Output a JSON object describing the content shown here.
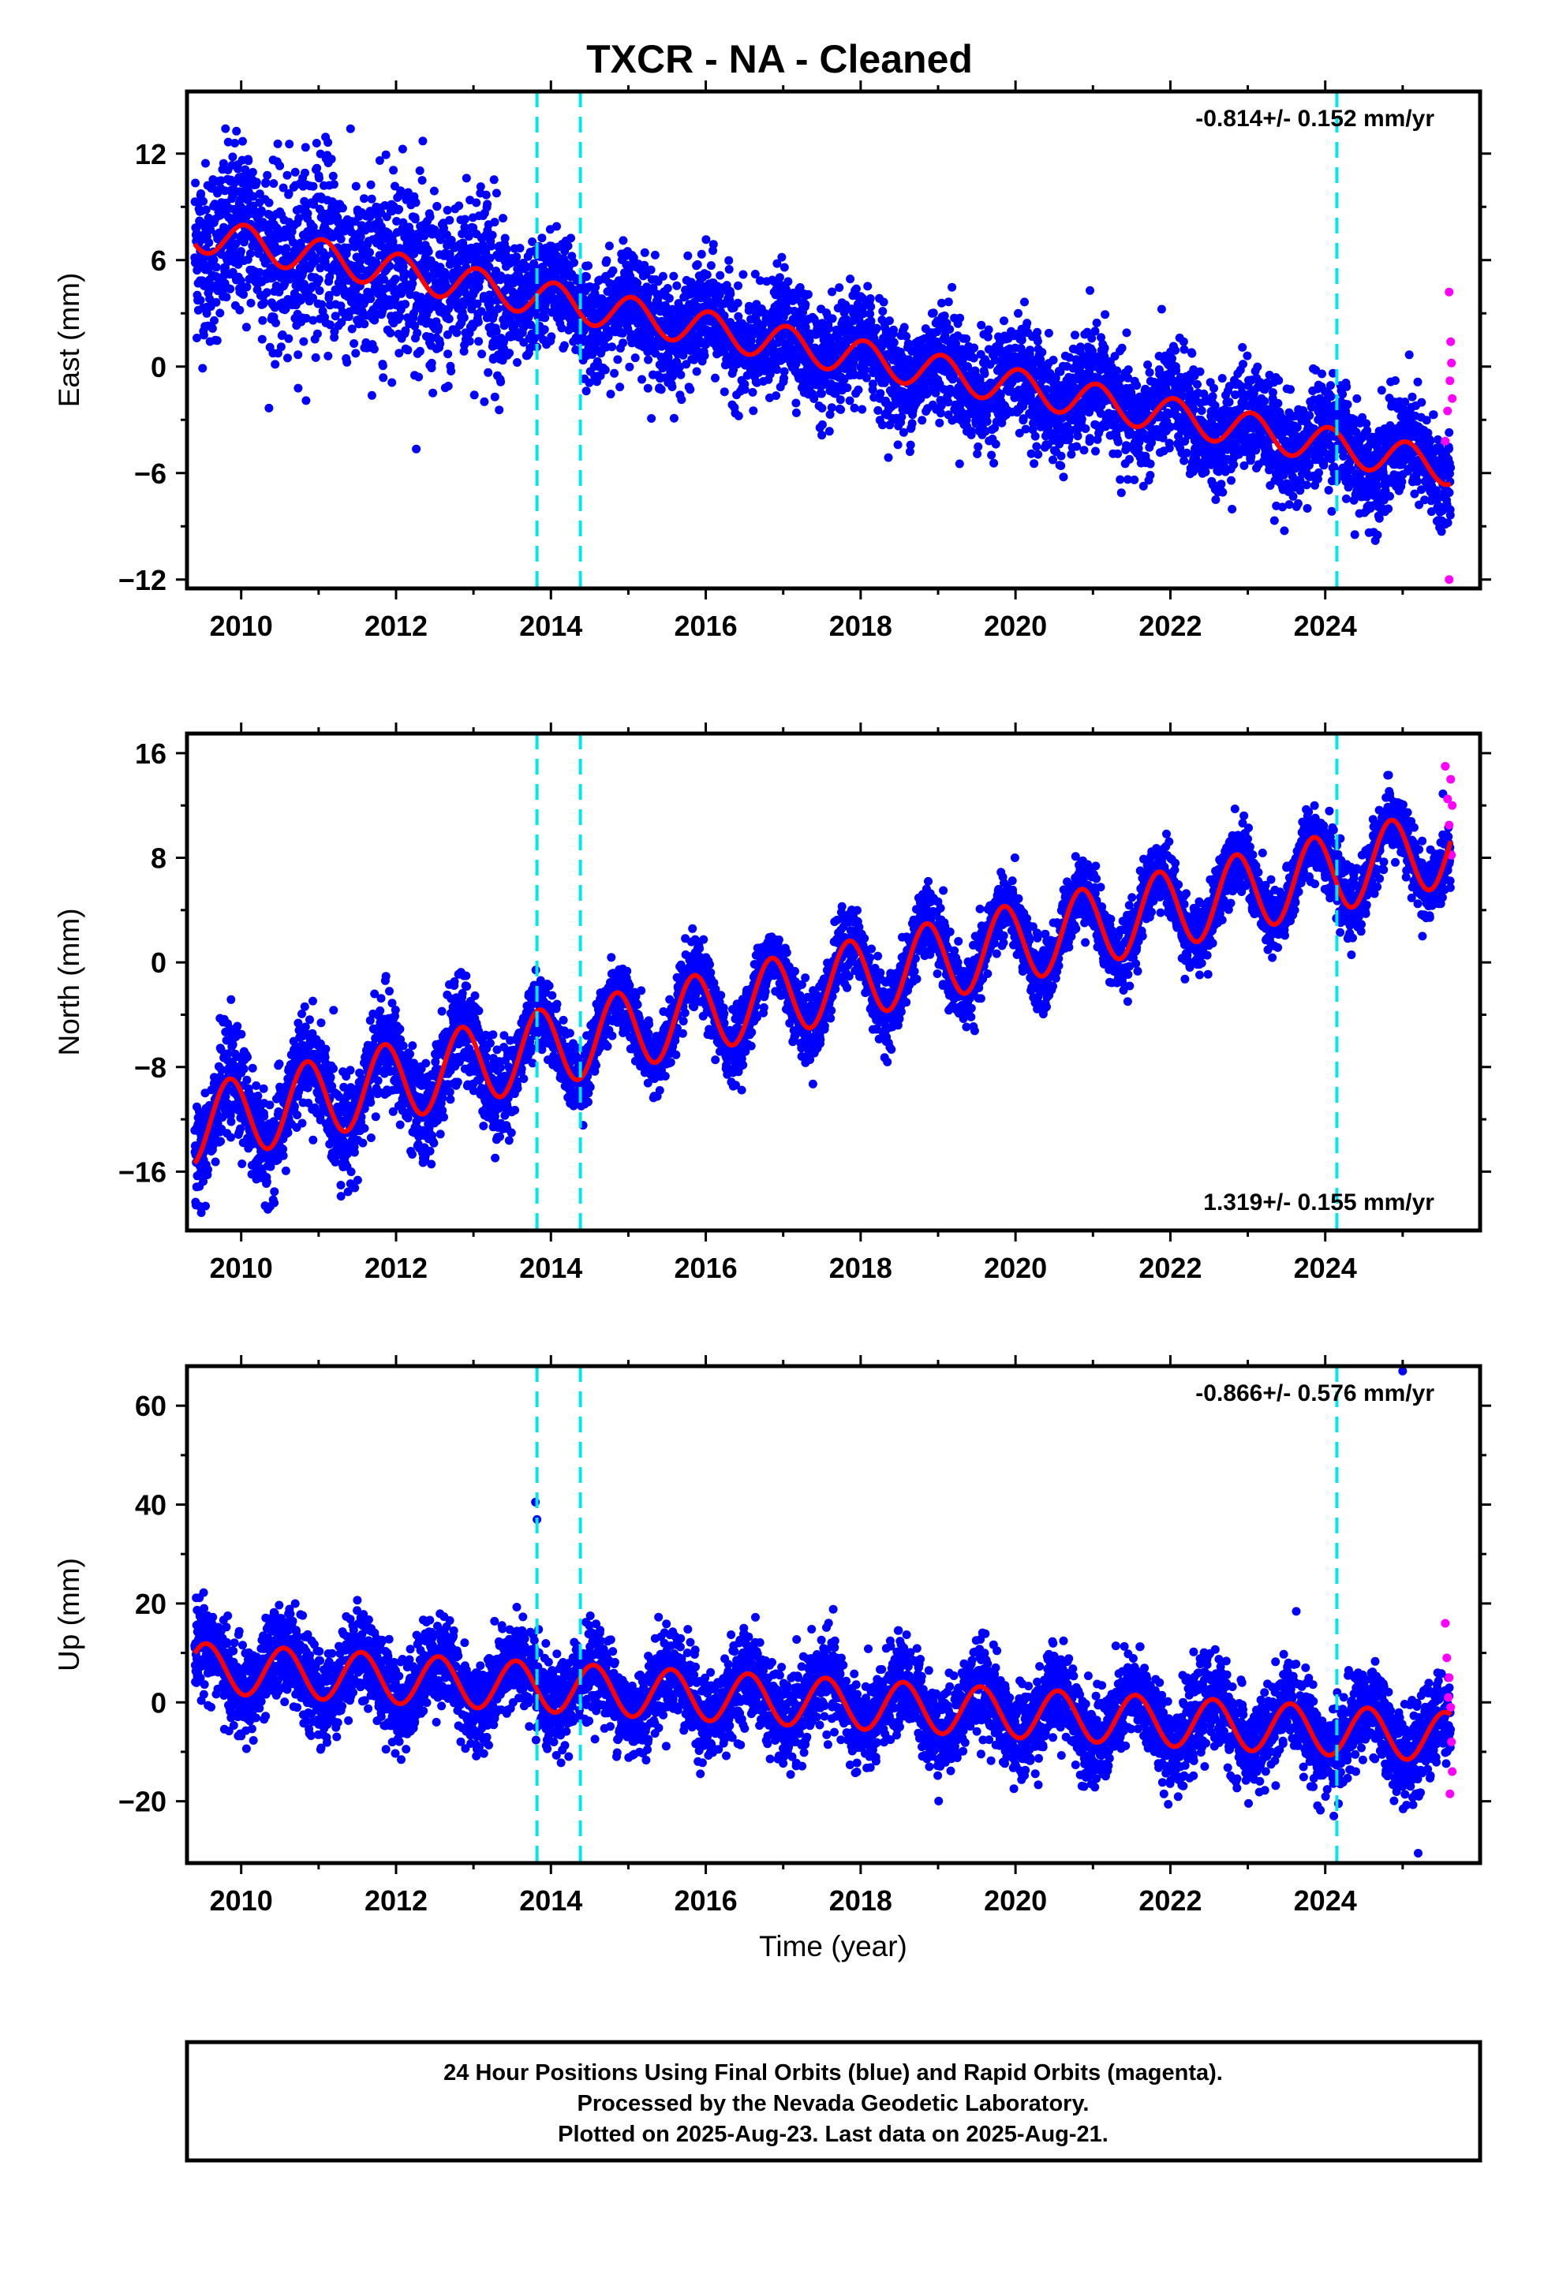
{
  "title": "TXCR  - NA - Cleaned",
  "footer": {
    "line1": "24 Hour Positions Using Final Orbits (blue) and Rapid Orbits (magenta).",
    "line2": "Processed by the Nevada Geodetic Laboratory.",
    "line3": "Plotted on 2025-Aug-23. Last data on 2025-Aug-21."
  },
  "colors": {
    "final_orbits": "#0000ff",
    "rapid_orbits": "#ff00ff",
    "model_fit": "#ff0000",
    "offset_lines": "#00e5ee"
  },
  "chart_data": [
    {
      "type": "scatter",
      "title": "TXCR  - NA - Cleaned",
      "xlabel": "",
      "ylabel": "East (mm)",
      "xlim": [
        2009.3,
        2026.0
      ],
      "ylim": [
        -12.5,
        15.5
      ],
      "xticks": [
        2010,
        2012,
        2014,
        2016,
        2018,
        2020,
        2022,
        2024
      ],
      "yticks": [
        -12,
        -6,
        0,
        6,
        12
      ],
      "ytick_labels": [
        "−12",
        "−6",
        "0",
        "6",
        "12"
      ],
      "rate": "-0.814+/- 0.152 mm/yr",
      "rate_position": "top-right",
      "model": {
        "intercept": 7.5,
        "slope": -0.814,
        "annual_amp": 1.0,
        "annual_phase": 0.8,
        "noise_sd": 1.5,
        "extra_sd_before_2013_5": 1.0
      },
      "offset_lines_x": [
        2013.82,
        2014.38,
        2024.15
      ],
      "rapid_orbits": {
        "x": [
          2025.55,
          2025.58,
          2025.6,
          2025.62,
          2025.63,
          2025.64,
          2025.6,
          2025.61
        ],
        "y": [
          -4.2,
          -2.5,
          4.2,
          1.4,
          0.2,
          -1.8,
          -12.0,
          -0.8
        ]
      }
    },
    {
      "type": "scatter",
      "title": "",
      "xlabel": "",
      "ylabel": "North (mm)",
      "xlim": [
        2009.3,
        2026.0
      ],
      "ylim": [
        -20.5,
        17.5
      ],
      "xticks": [
        2010,
        2012,
        2014,
        2016,
        2018,
        2020,
        2022,
        2024
      ],
      "yticks": [
        -16,
        -8,
        0,
        8,
        16
      ],
      "ytick_labels": [
        "−16",
        "−8",
        "0",
        "8",
        "16"
      ],
      "rate": "1.319+/- 0.155 mm/yr",
      "rate_position": "bottom-right",
      "model": {
        "intercept": -12.5,
        "slope": 1.319,
        "annual_amp": 3.0,
        "annual_phase": 1.6,
        "noise_sd": 1.3,
        "extra_sd_before_2013_5": 0.6
      },
      "offset_lines_x": [
        2013.82,
        2014.38,
        2024.15
      ],
      "rapid_orbits": {
        "x": [
          2025.55,
          2025.58,
          2025.6,
          2025.62,
          2025.63,
          2025.64
        ],
        "y": [
          15.0,
          12.5,
          10.5,
          14.0,
          8.2,
          12.0
        ]
      }
    },
    {
      "type": "scatter",
      "title": "",
      "xlabel": "Time (year)",
      "ylabel": "Up (mm)",
      "xlim": [
        2009.3,
        2026.0
      ],
      "ylim": [
        -32.5,
        68
      ],
      "xticks": [
        2010,
        2012,
        2014,
        2016,
        2018,
        2020,
        2022,
        2024
      ],
      "yticks": [
        -20,
        0,
        20,
        40,
        60
      ],
      "ytick_labels": [
        "−20",
        "0",
        "20",
        "40",
        "60"
      ],
      "rate": "-0.866+/- 0.576 mm/yr",
      "rate_position": "top-right",
      "model": {
        "intercept": 7.0,
        "slope": -0.866,
        "annual_amp": 5.0,
        "annual_phase": 1.3,
        "noise_sd": 4.5,
        "extra_sd_before_2013_5": 0.0
      },
      "offset_lines_x": [
        2013.82,
        2014.38,
        2024.15
      ],
      "outliers": {
        "x": [
          2013.8,
          2013.82,
          2025.0,
          2025.2
        ],
        "y": [
          40.5,
          37.0,
          67.0,
          -30.5
        ]
      },
      "rapid_orbits": {
        "x": [
          2025.55,
          2025.57,
          2025.6,
          2025.62,
          2025.63,
          2025.64,
          2025.61,
          2025.59
        ],
        "y": [
          16.0,
          9.0,
          5.0,
          -1.0,
          -8.0,
          -14.0,
          -18.5,
          1.0
        ]
      }
    }
  ]
}
